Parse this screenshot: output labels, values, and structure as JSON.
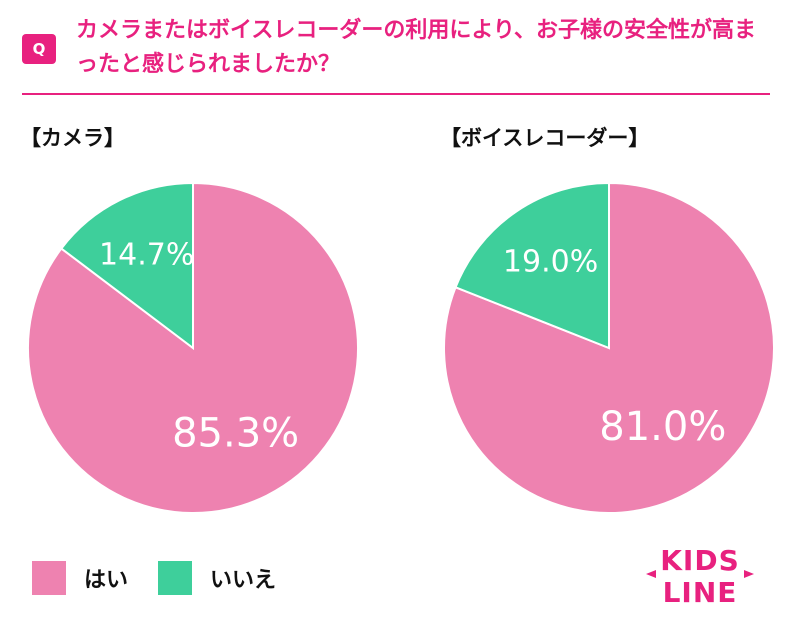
{
  "question": {
    "badge": "Q",
    "text": "カメラまたはボイスレコーダーの利用により、お子様の安全性が高まったと感じられましたか？"
  },
  "colors": {
    "yes": "#ee82b0",
    "no": "#3ecf9b",
    "accent": "#e8217f"
  },
  "legend": {
    "yes_label": "はい",
    "no_label": "いいえ"
  },
  "logo": {
    "line1": "KIDS",
    "line2": "LINE"
  },
  "chart_data": [
    {
      "type": "pie",
      "title": "【カメラ】",
      "categories": [
        "はい",
        "いいえ"
      ],
      "values": [
        85.3,
        14.7
      ],
      "labels": [
        "85.3%",
        "14.7%"
      ]
    },
    {
      "type": "pie",
      "title": "【ボイスレコーダー】",
      "categories": [
        "はい",
        "いいえ"
      ],
      "values": [
        81.0,
        19.0
      ],
      "labels": [
        "81.0%",
        "19.0%"
      ]
    }
  ]
}
